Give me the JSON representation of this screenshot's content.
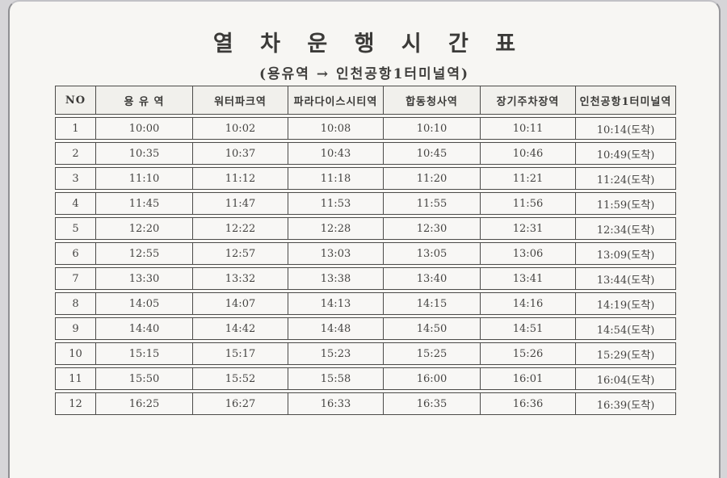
{
  "document": {
    "title": "열 차 운 행 시 간 표",
    "subtitle": "(용유역 → 인천공항1터미널역)"
  },
  "table": {
    "columns": [
      "NO",
      "용 유 역",
      "워터파크역",
      "파라다이스시티역",
      "합동청사역",
      "장기주차장역",
      "인천공항1터미널역"
    ],
    "rows": [
      [
        "1",
        "10:00",
        "10:02",
        "10:08",
        "10:10",
        "10:11",
        "10:14(도착)"
      ],
      [
        "2",
        "10:35",
        "10:37",
        "10:43",
        "10:45",
        "10:46",
        "10:49(도착)"
      ],
      [
        "3",
        "11:10",
        "11:12",
        "11:18",
        "11:20",
        "11:21",
        "11:24(도착)"
      ],
      [
        "4",
        "11:45",
        "11:47",
        "11:53",
        "11:55",
        "11:56",
        "11:59(도착)"
      ],
      [
        "5",
        "12:20",
        "12:22",
        "12:28",
        "12:30",
        "12:31",
        "12:34(도착)"
      ],
      [
        "6",
        "12:55",
        "12:57",
        "13:03",
        "13:05",
        "13:06",
        "13:09(도착)"
      ],
      [
        "7",
        "13:30",
        "13:32",
        "13:38",
        "13:40",
        "13:41",
        "13:44(도착)"
      ],
      [
        "8",
        "14:05",
        "14:07",
        "14:13",
        "14:15",
        "14:16",
        "14:19(도착)"
      ],
      [
        "9",
        "14:40",
        "14:42",
        "14:48",
        "14:50",
        "14:51",
        "14:54(도착)"
      ],
      [
        "10",
        "15:15",
        "15:17",
        "15:23",
        "15:25",
        "15:26",
        "15:29(도착)"
      ],
      [
        "11",
        "15:50",
        "15:52",
        "15:58",
        "16:00",
        "16:01",
        "16:04(도착)"
      ],
      [
        "12",
        "16:25",
        "16:27",
        "16:33",
        "16:35",
        "16:36",
        "16:39(도착)"
      ]
    ]
  },
  "colors": {
    "page_background": "#f7f6f3",
    "outer_background": "#d6d5d8",
    "table_border": "#4c4b49",
    "text": "#454442"
  }
}
